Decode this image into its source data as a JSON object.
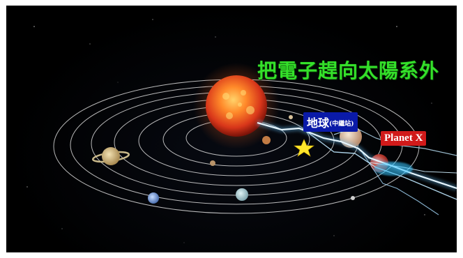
{
  "title": "把電子趕向太陽系外",
  "labels": {
    "earth_main": "地球",
    "earth_sub": "(中繼站)",
    "planet_x": "Planet X"
  },
  "colors": {
    "title": "#34e02a",
    "earth_label_bg": "#0a1aa8",
    "planet_x_label_bg": "#d11a1a",
    "lightning": "#aee4ff",
    "sun": "#e2471a"
  },
  "icons": [
    "sun",
    "saturn",
    "jupiter",
    "earth",
    "planet-x",
    "star",
    "lightning-bolt"
  ]
}
